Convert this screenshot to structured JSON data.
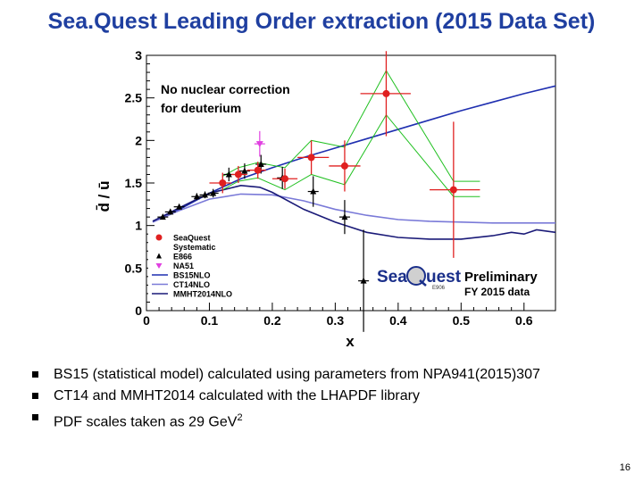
{
  "title": "Sea.Quest Leading Order extraction (2015 Data Set)",
  "bullets": [
    {
      "text": "BS15 (statistical model) calculated using parameters from NPA941(2015)307"
    },
    {
      "text": "CT14 and MMHT2014 calculated with the LHAPDF library"
    },
    {
      "text": "PDF scales taken as 29 GeV",
      "sup": "2"
    }
  ],
  "page_number": "16",
  "chart_data": {
    "type": "scatter",
    "xlabel": "x",
    "ylabel": "d̄ / ū",
    "xlim": [
      0,
      0.65
    ],
    "ylim": [
      0,
      3
    ],
    "xticks": [
      0,
      0.1,
      0.2,
      0.3,
      0.4,
      0.5,
      0.6
    ],
    "xtick_labels": [
      "0",
      "0.1",
      "0.2",
      "0.3",
      "0.4",
      "0.5",
      "0.6"
    ],
    "yticks": [
      0,
      0.5,
      1,
      1.5,
      2,
      2.5,
      3
    ],
    "ytick_labels": [
      "0",
      "0.5",
      "1",
      "1.5",
      "2",
      "2.5",
      "3"
    ],
    "annotation": [
      "No nuclear correction",
      "for deuterium"
    ],
    "logo": {
      "left": "Sea",
      "right": "uest",
      "sub": "E906",
      "preliminary": "Preliminary",
      "dataset": "FY 2015 data"
    },
    "legend": [
      {
        "label": "SeaQuest",
        "color": "#e02020",
        "marker": "circle"
      },
      {
        "label": "Systematic",
        "color": "#20c020",
        "marker": "none"
      },
      {
        "label": "E866",
        "color": "#000000",
        "marker": "triangle"
      },
      {
        "label": "NA51",
        "color": "#e040e0",
        "marker": "triangle-down"
      },
      {
        "label": "BS15NLO",
        "color": "#1f2fb0",
        "marker": "line"
      },
      {
        "label": "CT14NLO",
        "color": "#7a7ad8",
        "marker": "line"
      },
      {
        "label": "MMHT2014NLO",
        "color": "#1a1a78",
        "marker": "line"
      }
    ],
    "seaquest": [
      {
        "x": 0.121,
        "y": 1.5,
        "xlo": 0.1,
        "xhi": 0.135,
        "ey": 0.12
      },
      {
        "x": 0.146,
        "y": 1.6,
        "xlo": 0.135,
        "xhi": 0.16,
        "ey": 0.1
      },
      {
        "x": 0.177,
        "y": 1.65,
        "xlo": 0.16,
        "xhi": 0.19,
        "ey": 0.1
      },
      {
        "x": 0.22,
        "y": 1.55,
        "xlo": 0.2,
        "xhi": 0.24,
        "ey": 0.12
      },
      {
        "x": 0.262,
        "y": 1.8,
        "xlo": 0.24,
        "xhi": 0.29,
        "ey": 0.2
      },
      {
        "x": 0.315,
        "y": 1.7,
        "xlo": 0.29,
        "xhi": 0.34,
        "ey": 0.3
      },
      {
        "x": 0.381,
        "y": 2.55,
        "xlo": 0.34,
        "xhi": 0.42,
        "ey": 0.5
      },
      {
        "x": 0.488,
        "y": 1.42,
        "xlo": 0.45,
        "xhi": 0.53,
        "ey": 0.8
      }
    ],
    "systematic": {
      "x": [
        0.121,
        0.146,
        0.177,
        0.22,
        0.262,
        0.315,
        0.381,
        0.488,
        0.53
      ],
      "lo": [
        1.42,
        1.52,
        1.56,
        1.42,
        1.6,
        1.48,
        2.3,
        1.34,
        1.34
      ],
      "hi": [
        1.58,
        1.68,
        1.74,
        1.68,
        2.0,
        1.92,
        2.82,
        1.52,
        1.52
      ]
    },
    "e866": [
      {
        "x": 0.026,
        "y": 1.1,
        "ey": 0.03
      },
      {
        "x": 0.038,
        "y": 1.16,
        "ey": 0.03
      },
      {
        "x": 0.052,
        "y": 1.22,
        "ey": 0.03
      },
      {
        "x": 0.08,
        "y": 1.34,
        "ey": 0.04
      },
      {
        "x": 0.093,
        "y": 1.36,
        "ey": 0.04
      },
      {
        "x": 0.106,
        "y": 1.38,
        "ey": 0.05
      },
      {
        "x": 0.131,
        "y": 1.6,
        "ey": 0.08
      },
      {
        "x": 0.156,
        "y": 1.64,
        "ey": 0.09
      },
      {
        "x": 0.182,
        "y": 1.72,
        "ey": 0.11
      },
      {
        "x": 0.216,
        "y": 1.56,
        "ey": 0.13
      },
      {
        "x": 0.265,
        "y": 1.4,
        "ey": 0.18
      },
      {
        "x": 0.315,
        "y": 1.1,
        "ey": 0.2
      },
      {
        "x": 0.345,
        "y": 0.35,
        "ey": 0.6
      }
    ],
    "na51": {
      "x": 0.18,
      "y": 1.96,
      "ey": 0.15
    },
    "series": [
      {
        "name": "BS15NLO",
        "x": [
          0.01,
          0.05,
          0.1,
          0.15,
          0.2,
          0.25,
          0.3,
          0.35,
          0.4,
          0.45,
          0.5,
          0.55,
          0.6,
          0.65
        ],
        "values": [
          1.05,
          1.18,
          1.38,
          1.55,
          1.68,
          1.8,
          1.91,
          2.02,
          2.13,
          2.24,
          2.35,
          2.45,
          2.55,
          2.64
        ]
      },
      {
        "name": "CT14NLO",
        "x": [
          0.01,
          0.05,
          0.1,
          0.15,
          0.2,
          0.25,
          0.3,
          0.35,
          0.4,
          0.45,
          0.5,
          0.55,
          0.6,
          0.65
        ],
        "values": [
          1.04,
          1.17,
          1.31,
          1.37,
          1.36,
          1.29,
          1.19,
          1.12,
          1.07,
          1.05,
          1.04,
          1.03,
          1.03,
          1.03
        ]
      },
      {
        "name": "MMHT2014NLO",
        "x": [
          0.01,
          0.05,
          0.1,
          0.15,
          0.18,
          0.2,
          0.25,
          0.3,
          0.35,
          0.4,
          0.45,
          0.5,
          0.55,
          0.58,
          0.6,
          0.62,
          0.65
        ],
        "values": [
          1.05,
          1.2,
          1.38,
          1.47,
          1.45,
          1.39,
          1.19,
          1.04,
          0.92,
          0.86,
          0.84,
          0.84,
          0.88,
          0.92,
          0.9,
          0.95,
          0.92
        ]
      }
    ]
  }
}
